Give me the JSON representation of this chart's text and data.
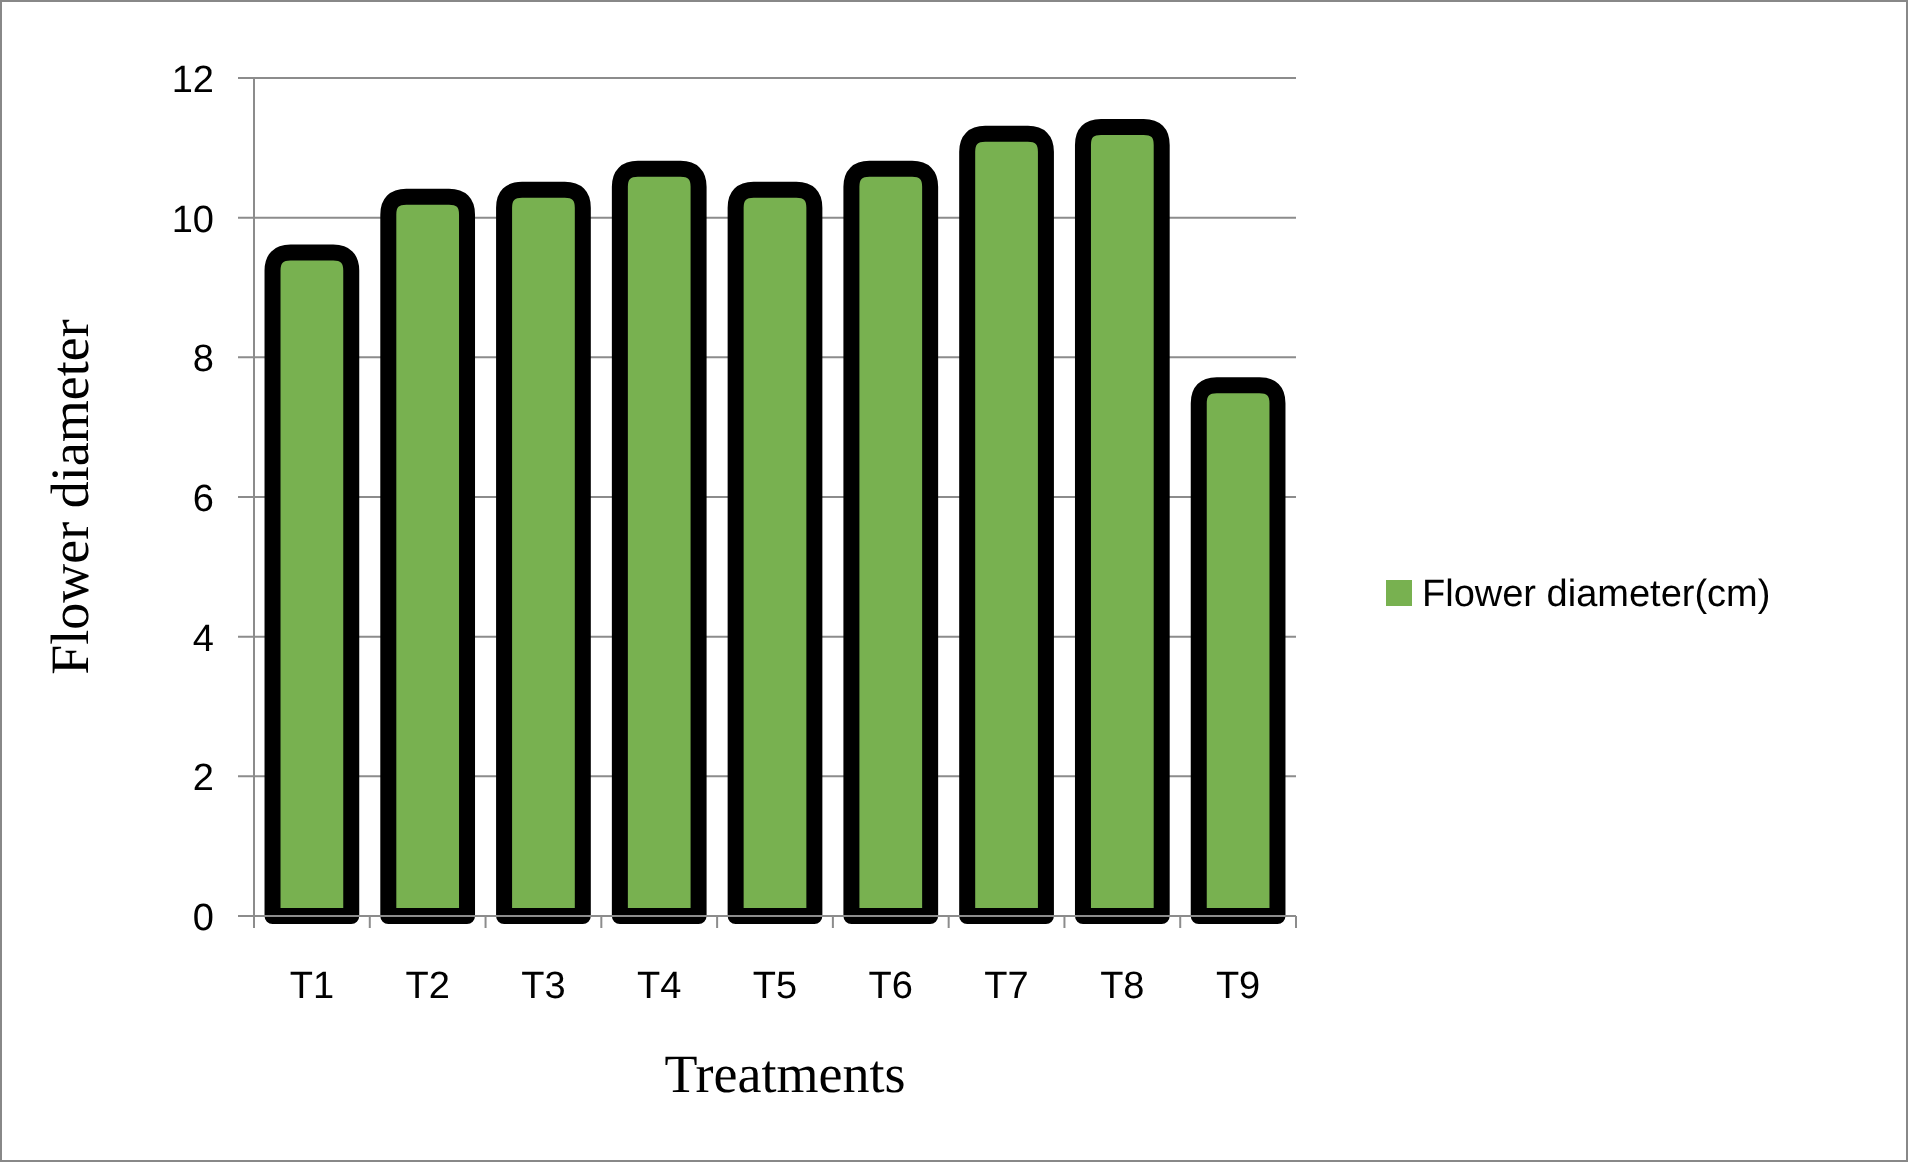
{
  "chart_data": {
    "type": "bar",
    "xlabel": "Treatments",
    "ylabel": "Flower diameter",
    "categories": [
      "T1",
      "T2",
      "T3",
      "T4",
      "T5",
      "T6",
      "T7",
      "T8",
      "T9"
    ],
    "series": [
      {
        "name": "Flower diameter(cm)",
        "color": "#78b150",
        "values": [
          9.5,
          10.3,
          10.4,
          10.7,
          10.4,
          10.7,
          11.2,
          11.3,
          7.6
        ]
      }
    ],
    "ylim": [
      0,
      12
    ],
    "yticks": [
      0,
      2,
      4,
      6,
      8,
      10,
      12
    ],
    "grid": "y",
    "legend": "right"
  }
}
